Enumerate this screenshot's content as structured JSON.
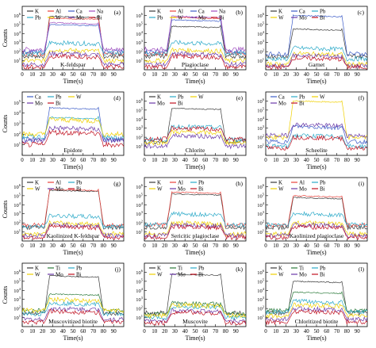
{
  "figure": {
    "ylabel": "Counts",
    "xlabel": "Time(s)",
    "xticks": [
      0,
      10,
      20,
      30,
      40,
      50,
      60,
      70,
      80,
      90
    ],
    "xlim": [
      0,
      100
    ]
  },
  "series_colors": {
    "K": "#3a3a3a",
    "Al": "#e8413b",
    "Ca": "#3c5cc8",
    "Na": "#a04dbf",
    "Pb": "#2aa9c8",
    "W": "#f0d000",
    "Mo": "#6b3aa8",
    "Bi": "#c01020",
    "Ti": "#2b7a3a"
  },
  "chart_data": [
    {
      "type": "line",
      "panel": "(a)",
      "mineral": "K-feldspar",
      "legend": [
        "K",
        "Al",
        "Ca",
        "Na",
        "Pb",
        "W",
        "Mo",
        "Bi"
      ],
      "ylim": [
        0,
        7
      ],
      "yticks": [
        1,
        2,
        3,
        4,
        5,
        6
      ],
      "ylog": true,
      "visible_yticks": [
        1,
        2,
        3,
        4,
        5,
        6
      ],
      "series": [
        {
          "name": "K",
          "plateau": 5.9
        },
        {
          "name": "Al",
          "plateau": 5.7
        },
        {
          "name": "Ca",
          "plateau": 5.0
        },
        {
          "name": "Na",
          "plateau": 5.2
        },
        {
          "name": "Pb",
          "plateau": 3.0
        },
        {
          "name": "W",
          "plateau": 2.2
        },
        {
          "name": "Mo",
          "plateau": 1.8
        },
        {
          "name": "Bi",
          "plateau": 1.5
        }
      ]
    },
    {
      "type": "line",
      "panel": "(b)",
      "mineral": "Plagioclase",
      "legend": [
        "K",
        "Al",
        "Ca",
        "Na",
        "Pb",
        "W",
        "Mo",
        "Bi"
      ],
      "ylim": [
        0,
        7
      ],
      "ylog": true,
      "visible_yticks": [
        1,
        2,
        3,
        4,
        5,
        6
      ],
      "series": [
        {
          "name": "K",
          "plateau": 4.8
        },
        {
          "name": "Al",
          "plateau": 5.8
        },
        {
          "name": "Ca",
          "plateau": 5.5
        },
        {
          "name": "Na",
          "plateau": 5.9
        },
        {
          "name": "Pb",
          "plateau": 3.0
        },
        {
          "name": "W",
          "plateau": 2.2
        },
        {
          "name": "Mo",
          "plateau": 1.8
        },
        {
          "name": "Bi",
          "plateau": 1.5
        }
      ]
    },
    {
      "type": "line",
      "panel": "(c)",
      "mineral": "Garnet",
      "legend": [
        "K",
        "Ca",
        "Pb",
        "W",
        "Mo",
        "Bi"
      ],
      "ylim": [
        0,
        7
      ],
      "ylog": true,
      "visible_yticks": [
        1,
        2,
        3,
        4,
        5,
        6
      ],
      "series": [
        {
          "name": "K",
          "plateau": 4.5
        },
        {
          "name": "Ca",
          "plateau": 6.0
        },
        {
          "name": "Pb",
          "plateau": 2.4
        },
        {
          "name": "W",
          "plateau": 1.8
        },
        {
          "name": "Mo",
          "plateau": 1.6
        },
        {
          "name": "Bi",
          "plateau": 1.3
        }
      ]
    },
    {
      "type": "line",
      "panel": "(d)",
      "mineral": "Epidote",
      "legend": [
        "Ca",
        "Pb",
        "W",
        "Mo",
        "Bi"
      ],
      "ylim": [
        0,
        6
      ],
      "ylog": true,
      "visible_yticks": [
        1,
        2,
        3,
        4,
        5
      ],
      "series": [
        {
          "name": "Ca",
          "plateau": 4.5
        },
        {
          "name": "Pb",
          "plateau": 3.6
        },
        {
          "name": "W",
          "plateau": 3.4
        },
        {
          "name": "Mo",
          "plateau": 2.6
        },
        {
          "name": "Bi",
          "plateau": 2.2
        }
      ]
    },
    {
      "type": "line",
      "panel": "(e)",
      "mineral": "Chlorite",
      "legend": [
        "K",
        "Pb",
        "W",
        "Mo",
        "Bi"
      ],
      "ylim": [
        0,
        7
      ],
      "ylog": true,
      "visible_yticks": [
        1,
        2,
        3,
        4,
        5,
        6
      ],
      "series": [
        {
          "name": "K",
          "plateau": 5.2
        },
        {
          "name": "Pb",
          "plateau": 3.2
        },
        {
          "name": "W",
          "plateau": 2.6
        },
        {
          "name": "Mo",
          "plateau": 2.2
        },
        {
          "name": "Bi",
          "plateau": 3.0
        }
      ]
    },
    {
      "type": "line",
      "panel": "(f)",
      "mineral": "Scheelite",
      "legend": [
        "Ca",
        "Pb",
        "W",
        "Mo",
        "Bi"
      ],
      "ylim": [
        0,
        7
      ],
      "ylog": true,
      "visible_yticks": [
        1,
        2,
        3,
        4,
        5,
        6
      ],
      "series": [
        {
          "name": "Ca",
          "plateau": 3.2
        },
        {
          "name": "Pb",
          "plateau": 2.2
        },
        {
          "name": "W",
          "plateau": 6.0
        },
        {
          "name": "Mo",
          "plateau": 3.4
        },
        {
          "name": "Bi",
          "plateau": 2.0
        }
      ]
    },
    {
      "type": "line",
      "panel": "(g)",
      "mineral": "Kaolinized K-feldspar",
      "legend": [
        "K",
        "Al",
        "Pb",
        "W",
        "Mo",
        "Bi"
      ],
      "ylim": [
        0,
        7
      ],
      "ylog": true,
      "visible_yticks": [
        1,
        2,
        3,
        4,
        5,
        6
      ],
      "series": [
        {
          "name": "K",
          "plateau": 5.6
        },
        {
          "name": "Al",
          "plateau": 5.7
        },
        {
          "name": "Pb",
          "plateau": 2.8
        },
        {
          "name": "W",
          "plateau": 2.0
        },
        {
          "name": "Mo",
          "plateau": 1.8
        },
        {
          "name": "Bi",
          "plateau": 1.6
        }
      ]
    },
    {
      "type": "line",
      "panel": "(h)",
      "mineral": "Sericitic plagioclase",
      "legend": [
        "K",
        "Al",
        "Pb",
        "W",
        "Mo",
        "Bi"
      ],
      "ylim": [
        0,
        7
      ],
      "ylog": true,
      "visible_yticks": [
        1,
        2,
        3,
        4,
        5,
        6
      ],
      "series": [
        {
          "name": "K",
          "plateau": 5.2
        },
        {
          "name": "Al",
          "plateau": 5.4
        },
        {
          "name": "Pb",
          "plateau": 3.0
        },
        {
          "name": "W",
          "plateau": 2.0
        },
        {
          "name": "Mo",
          "plateau": 1.8
        },
        {
          "name": "Bi",
          "plateau": 1.6
        }
      ]
    },
    {
      "type": "line",
      "panel": "(i)",
      "mineral": "Kaolinized plagioclase",
      "legend": [
        "K",
        "Al",
        "Pb",
        "W",
        "Mo",
        "Bi"
      ],
      "ylim": [
        0,
        7
      ],
      "ylog": true,
      "visible_yticks": [
        1,
        2,
        3,
        4,
        5,
        6
      ],
      "series": [
        {
          "name": "K",
          "plateau": 4.8
        },
        {
          "name": "Al",
          "plateau": 5.0
        },
        {
          "name": "Pb",
          "plateau": 3.0
        },
        {
          "name": "W",
          "plateau": 2.0
        },
        {
          "name": "Mo",
          "plateau": 1.8
        },
        {
          "name": "Bi",
          "plateau": 1.6
        }
      ]
    },
    {
      "type": "line",
      "panel": "(j)",
      "mineral": "Muscovitized biotite",
      "legend": [
        "K",
        "Ti",
        "Pb",
        "W",
        "Mo",
        "Bi"
      ],
      "ylim": [
        0,
        7
      ],
      "ylog": true,
      "visible_yticks": [
        1,
        2,
        3,
        4,
        5,
        6
      ],
      "series": [
        {
          "name": "K",
          "plateau": 5.6
        },
        {
          "name": "Ti",
          "plateau": 3.6
        },
        {
          "name": "Pb",
          "plateau": 2.6
        },
        {
          "name": "W",
          "plateau": 3.0
        },
        {
          "name": "Mo",
          "plateau": 2.0
        },
        {
          "name": "Bi",
          "plateau": 1.7
        }
      ]
    },
    {
      "type": "line",
      "panel": "(k)",
      "mineral": "Muscovite",
      "legend": [
        "K",
        "Ti",
        "Pb",
        "W",
        "Mo",
        "Bi"
      ],
      "ylim": [
        0,
        7
      ],
      "ylog": true,
      "visible_yticks": [
        1,
        2,
        3,
        4,
        5,
        6
      ],
      "series": [
        {
          "name": "K",
          "plateau": 5.8
        },
        {
          "name": "Ti",
          "plateau": 2.6
        },
        {
          "name": "Pb",
          "plateau": 2.2
        },
        {
          "name": "W",
          "plateau": 2.4
        },
        {
          "name": "Mo",
          "plateau": 1.8
        },
        {
          "name": "Bi",
          "plateau": 1.6
        }
      ]
    },
    {
      "type": "line",
      "panel": "(l)",
      "mineral": "Chloritized biotite",
      "legend": [
        "K",
        "Ti",
        "Pb",
        "W",
        "Mo",
        "Bi"
      ],
      "ylim": [
        0,
        7
      ],
      "ylog": true,
      "visible_yticks": [
        1,
        2,
        3,
        4,
        5,
        6
      ],
      "series": [
        {
          "name": "K",
          "plateau": 5.0
        },
        {
          "name": "Ti",
          "plateau": 3.8
        },
        {
          "name": "Pb",
          "plateau": 2.8
        },
        {
          "name": "W",
          "plateau": 2.4
        },
        {
          "name": "Mo",
          "plateau": 2.0
        },
        {
          "name": "Bi",
          "plateau": 1.7
        }
      ]
    }
  ]
}
